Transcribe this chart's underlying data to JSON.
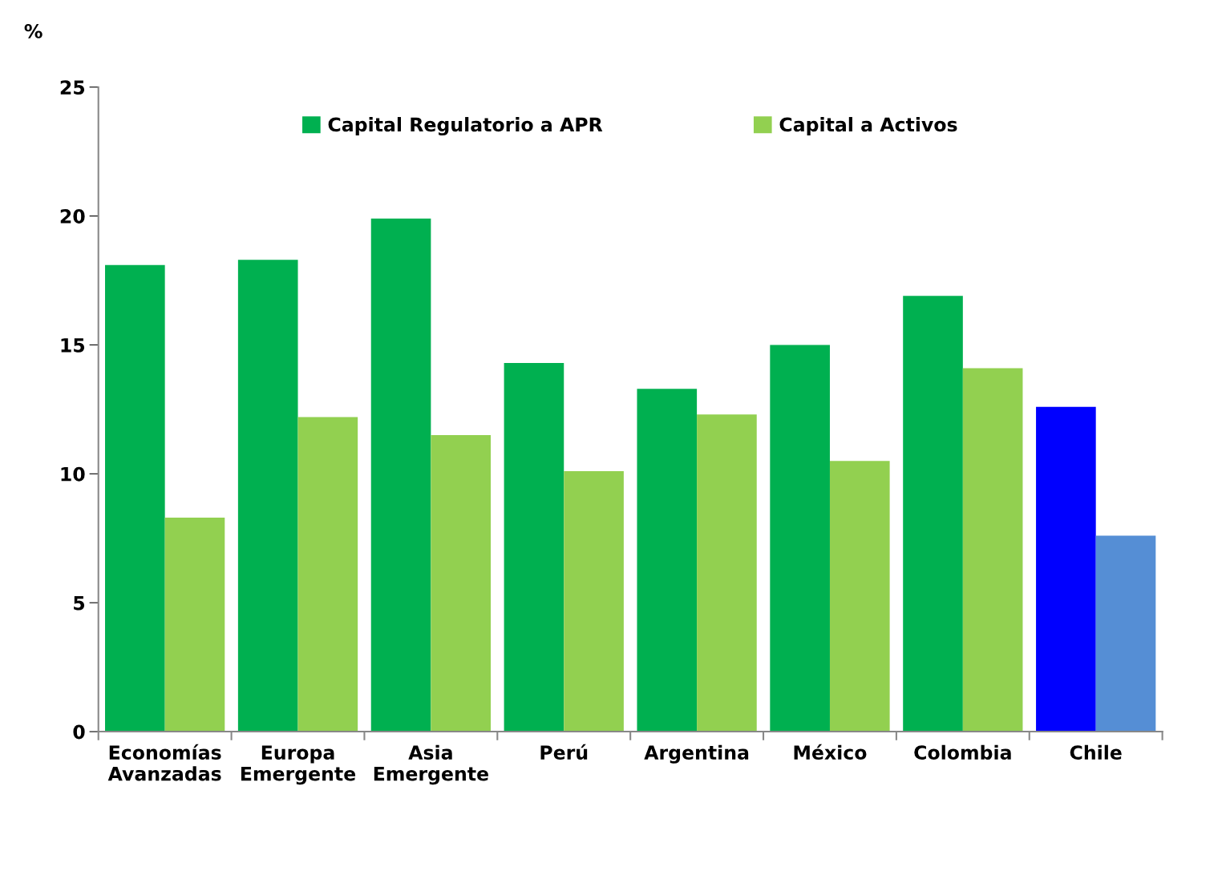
{
  "chart_data": {
    "type": "bar",
    "ylabel": "%",
    "categories": [
      "Economías\nAvanzadas",
      "Europa\nEmergente",
      "Asia\nEmergente",
      "Perú",
      "Argentina",
      "México",
      "Colombia",
      "Chile"
    ],
    "series": [
      {
        "name": "Capital Regulatorio a APR",
        "color": "#00b050",
        "colors": [
          "#00b050",
          "#00b050",
          "#00b050",
          "#00b050",
          "#00b050",
          "#00b050",
          "#00b050",
          "#0000ff"
        ],
        "values": [
          18.1,
          18.3,
          19.9,
          14.3,
          13.3,
          15.0,
          16.9,
          12.6
        ]
      },
      {
        "name": "Capital a Activos",
        "color": "#92d050",
        "colors": [
          "#92d050",
          "#92d050",
          "#92d050",
          "#92d050",
          "#92d050",
          "#92d050",
          "#92d050",
          "#558ed5"
        ],
        "values": [
          8.3,
          12.2,
          11.5,
          10.1,
          12.3,
          10.5,
          14.1,
          7.6
        ]
      }
    ],
    "ylim": [
      0,
      25
    ],
    "yticks": [
      0,
      5,
      10,
      15,
      20,
      25
    ],
    "grid": false,
    "legend": "top"
  }
}
